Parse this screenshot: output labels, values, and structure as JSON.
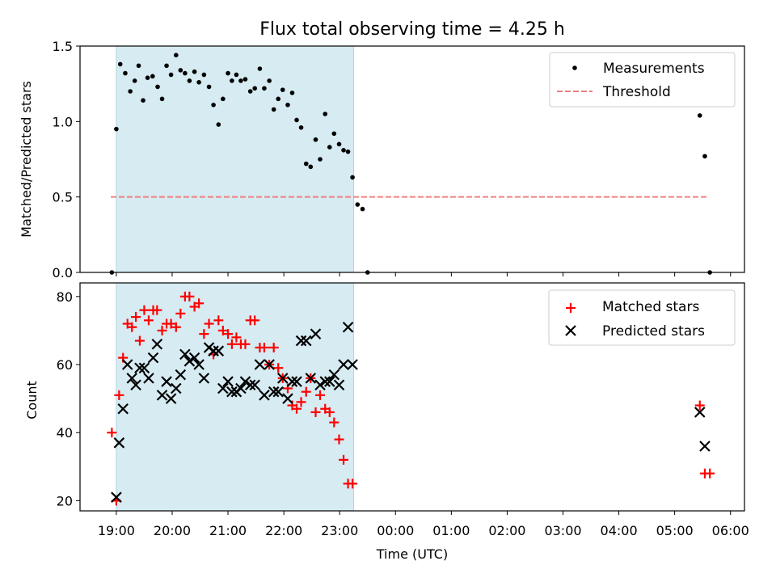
{
  "chart_data": [
    {
      "type": "scatter",
      "title": "Flux total observing time = 4.25 h",
      "xlabel": "",
      "ylabel": "Matched/Predicted stars",
      "xlim": [
        18.35,
        30.25
      ],
      "ylim": [
        0,
        1.5
      ],
      "yticks": [
        0,
        0.5,
        1.0,
        1.5
      ],
      "ytick_labels": [
        "0.0",
        "0.5",
        "1.0",
        "1.5"
      ],
      "observing_span": [
        19.0,
        23.25
      ],
      "threshold": {
        "name": "Threshold",
        "value": 0.5,
        "x_range": [
          18.9,
          29.6
        ],
        "color": "#f08080"
      },
      "legend": [
        "Measurements",
        "Threshold"
      ],
      "series": [
        {
          "name": "Measurements",
          "color": "#000000",
          "points": [
            [
              18.92,
              0.0
            ],
            [
              19.0,
              0.95
            ],
            [
              19.07,
              1.38
            ],
            [
              19.16,
              1.32
            ],
            [
              19.25,
              1.2
            ],
            [
              19.33,
              1.27
            ],
            [
              19.4,
              1.37
            ],
            [
              19.48,
              1.14
            ],
            [
              19.56,
              1.29
            ],
            [
              19.65,
              1.3
            ],
            [
              19.74,
              1.23
            ],
            [
              19.82,
              1.15
            ],
            [
              19.9,
              1.37
            ],
            [
              19.98,
              1.31
            ],
            [
              20.07,
              1.44
            ],
            [
              20.15,
              1.34
            ],
            [
              20.23,
              1.32
            ],
            [
              20.31,
              1.27
            ],
            [
              20.4,
              1.33
            ],
            [
              20.48,
              1.26
            ],
            [
              20.57,
              1.31
            ],
            [
              20.66,
              1.23
            ],
            [
              20.74,
              1.11
            ],
            [
              20.83,
              0.98
            ],
            [
              20.91,
              1.15
            ],
            [
              21.0,
              1.32
            ],
            [
              21.07,
              1.27
            ],
            [
              21.15,
              1.31
            ],
            [
              21.23,
              1.27
            ],
            [
              21.31,
              1.28
            ],
            [
              21.4,
              1.2
            ],
            [
              21.48,
              1.22
            ],
            [
              21.57,
              1.35
            ],
            [
              21.65,
              1.22
            ],
            [
              21.74,
              1.27
            ],
            [
              21.82,
              1.08
            ],
            [
              21.9,
              1.15
            ],
            [
              21.98,
              1.21
            ],
            [
              22.07,
              1.11
            ],
            [
              22.15,
              1.19
            ],
            [
              22.23,
              1.01
            ],
            [
              22.31,
              0.96
            ],
            [
              22.4,
              0.72
            ],
            [
              22.48,
              0.7
            ],
            [
              22.57,
              0.88
            ],
            [
              22.65,
              0.75
            ],
            [
              22.74,
              1.05
            ],
            [
              22.82,
              0.83
            ],
            [
              22.9,
              0.92
            ],
            [
              22.99,
              0.85
            ],
            [
              23.07,
              0.81
            ],
            [
              23.15,
              0.8
            ],
            [
              23.23,
              0.63
            ],
            [
              23.32,
              0.45
            ],
            [
              23.41,
              0.42
            ],
            [
              23.5,
              0.0
            ],
            [
              29.45,
              1.04
            ],
            [
              29.54,
              0.77
            ],
            [
              29.63,
              0.0
            ]
          ]
        }
      ]
    },
    {
      "type": "scatter",
      "title": "",
      "xlabel": "Time (UTC)",
      "ylabel": "Count",
      "xlim": [
        18.35,
        30.25
      ],
      "ylim": [
        17,
        84
      ],
      "yticks": [
        20,
        40,
        60,
        80
      ],
      "ytick_labels": [
        "20",
        "40",
        "60",
        "80"
      ],
      "xtick_values": [
        19,
        20,
        21,
        22,
        23,
        24,
        25,
        26,
        27,
        28,
        29,
        30
      ],
      "xtick_labels": [
        "19:00",
        "20:00",
        "21:00",
        "22:00",
        "23:00",
        "00:00",
        "01:00",
        "02:00",
        "03:00",
        "04:00",
        "05:00",
        "06:00"
      ],
      "observing_span": [
        19.0,
        23.25
      ],
      "legend": [
        "Matched stars",
        "Predicted stars"
      ],
      "series": [
        {
          "name": "Matched stars",
          "marker": "+",
          "color": "#ff0000",
          "points": [
            [
              18.92,
              40
            ],
            [
              19.0,
              20
            ],
            [
              19.05,
              51
            ],
            [
              19.12,
              62
            ],
            [
              19.2,
              72
            ],
            [
              19.28,
              71
            ],
            [
              19.35,
              74
            ],
            [
              19.42,
              67
            ],
            [
              19.5,
              76
            ],
            [
              19.58,
              73
            ],
            [
              19.66,
              76
            ],
            [
              19.73,
              76
            ],
            [
              19.82,
              70
            ],
            [
              19.9,
              72
            ],
            [
              19.98,
              72
            ],
            [
              20.07,
              71
            ],
            [
              20.15,
              75
            ],
            [
              20.23,
              80
            ],
            [
              20.31,
              80
            ],
            [
              20.4,
              77
            ],
            [
              20.48,
              78
            ],
            [
              20.57,
              69
            ],
            [
              20.66,
              72
            ],
            [
              20.74,
              63
            ],
            [
              20.83,
              73
            ],
            [
              20.91,
              70
            ],
            [
              21.0,
              69
            ],
            [
              21.07,
              66
            ],
            [
              21.15,
              68
            ],
            [
              21.23,
              66
            ],
            [
              21.31,
              66
            ],
            [
              21.4,
              73
            ],
            [
              21.48,
              73
            ],
            [
              21.57,
              65
            ],
            [
              21.65,
              65
            ],
            [
              21.74,
              60
            ],
            [
              21.82,
              65
            ],
            [
              21.9,
              59
            ],
            [
              21.98,
              56
            ],
            [
              22.07,
              53
            ],
            [
              22.15,
              48
            ],
            [
              22.23,
              47
            ],
            [
              22.31,
              49
            ],
            [
              22.4,
              52
            ],
            [
              22.48,
              56
            ],
            [
              22.57,
              46
            ],
            [
              22.65,
              51
            ],
            [
              22.74,
              47
            ],
            [
              22.82,
              46
            ],
            [
              22.9,
              43
            ],
            [
              22.99,
              38
            ],
            [
              23.07,
              32
            ],
            [
              23.15,
              25
            ],
            [
              23.23,
              25
            ],
            [
              29.45,
              48
            ],
            [
              29.54,
              28
            ],
            [
              29.63,
              28
            ]
          ]
        },
        {
          "name": "Predicted stars",
          "marker": "x",
          "color": "#000000",
          "points": [
            [
              19.0,
              21
            ],
            [
              19.05,
              37
            ],
            [
              19.12,
              47
            ],
            [
              19.2,
              60
            ],
            [
              19.28,
              56
            ],
            [
              19.35,
              54
            ],
            [
              19.42,
              59
            ],
            [
              19.5,
              59
            ],
            [
              19.58,
              56
            ],
            [
              19.66,
              62
            ],
            [
              19.73,
              66
            ],
            [
              19.82,
              51
            ],
            [
              19.9,
              55
            ],
            [
              19.98,
              50
            ],
            [
              20.07,
              53
            ],
            [
              20.15,
              57
            ],
            [
              20.23,
              63
            ],
            [
              20.31,
              61
            ],
            [
              20.4,
              62
            ],
            [
              20.48,
              60
            ],
            [
              20.57,
              56
            ],
            [
              20.66,
              65
            ],
            [
              20.74,
              64
            ],
            [
              20.83,
              64
            ],
            [
              20.91,
              53
            ],
            [
              21.0,
              55
            ],
            [
              21.07,
              52
            ],
            [
              21.15,
              52
            ],
            [
              21.23,
              53
            ],
            [
              21.31,
              55
            ],
            [
              21.4,
              54
            ],
            [
              21.48,
              54
            ],
            [
              21.57,
              60
            ],
            [
              21.65,
              51
            ],
            [
              21.74,
              60
            ],
            [
              21.82,
              52
            ],
            [
              21.9,
              52
            ],
            [
              21.98,
              56
            ],
            [
              22.07,
              50
            ],
            [
              22.15,
              55
            ],
            [
              22.23,
              55
            ],
            [
              22.31,
              67
            ],
            [
              22.4,
              67
            ],
            [
              22.48,
              56
            ],
            [
              22.57,
              69
            ],
            [
              22.65,
              54
            ],
            [
              22.74,
              55
            ],
            [
              22.82,
              55
            ],
            [
              22.9,
              57
            ],
            [
              22.99,
              54
            ],
            [
              23.07,
              60
            ],
            [
              23.15,
              71
            ],
            [
              23.23,
              60
            ],
            [
              29.45,
              46
            ],
            [
              29.54,
              36
            ]
          ]
        }
      ]
    }
  ]
}
